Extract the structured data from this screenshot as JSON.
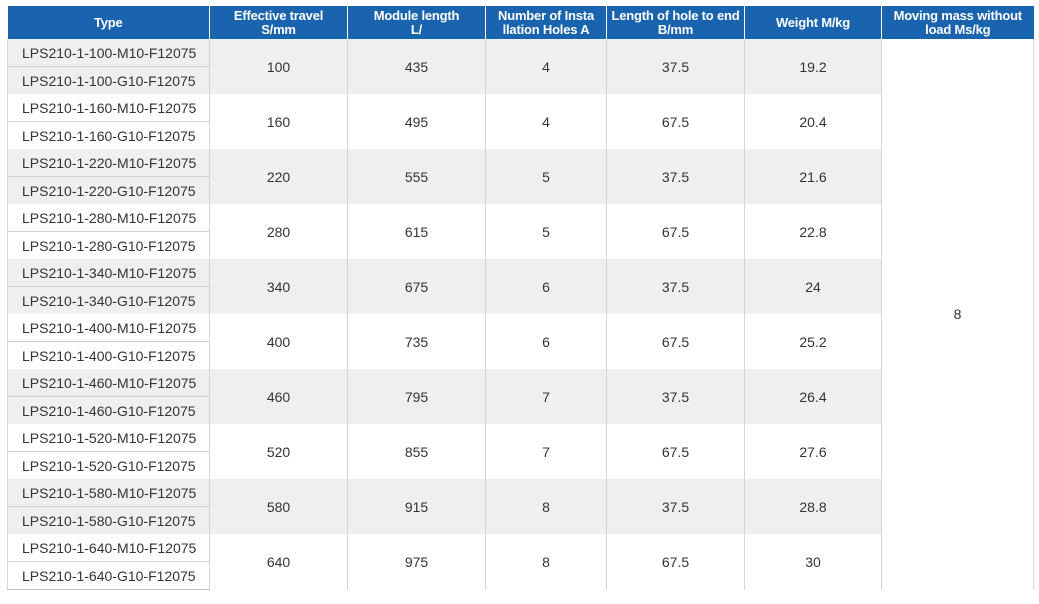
{
  "headers": {
    "type": "Type",
    "travel_1": "Effective travel",
    "travel_2": "S/mm",
    "length_1": "Module length",
    "length_2": "L/",
    "holes_1": "Number of Insta",
    "holes_2": "llation Holes A",
    "hole_end_1": "Length of hole to end",
    "hole_end_2": "B/mm",
    "weight": "Weight M/kg",
    "mass_1": "Moving mass without",
    "mass_2": "load Ms/kg"
  },
  "moving_mass": "8",
  "rows": [
    {
      "type_m": "LPS210-1-100-M10-F12075",
      "type_g": "LPS210-1-100-G10-F12075",
      "travel": "100",
      "length": "435",
      "holes": "4",
      "hole_end": "37.5",
      "weight": "19.2"
    },
    {
      "type_m": "LPS210-1-160-M10-F12075",
      "type_g": "LPS210-1-160-G10-F12075",
      "travel": "160",
      "length": "495",
      "holes": "4",
      "hole_end": "67.5",
      "weight": "20.4"
    },
    {
      "type_m": "LPS210-1-220-M10-F12075",
      "type_g": "LPS210-1-220-G10-F12075",
      "travel": "220",
      "length": "555",
      "holes": "5",
      "hole_end": "37.5",
      "weight": "21.6"
    },
    {
      "type_m": "LPS210-1-280-M10-F12075",
      "type_g": "LPS210-1-280-G10-F12075",
      "travel": "280",
      "length": "615",
      "holes": "5",
      "hole_end": "67.5",
      "weight": "22.8"
    },
    {
      "type_m": "LPS210-1-340-M10-F12075",
      "type_g": "LPS210-1-340-G10-F12075",
      "travel": "340",
      "length": "675",
      "holes": "6",
      "hole_end": "37.5",
      "weight": "24"
    },
    {
      "type_m": "LPS210-1-400-M10-F12075",
      "type_g": "LPS210-1-400-G10-F12075",
      "travel": "400",
      "length": "735",
      "holes": "6",
      "hole_end": "67.5",
      "weight": "25.2"
    },
    {
      "type_m": "LPS210-1-460-M10-F12075",
      "type_g": "LPS210-1-460-G10-F12075",
      "travel": "460",
      "length": "795",
      "holes": "7",
      "hole_end": "37.5",
      "weight": "26.4"
    },
    {
      "type_m": "LPS210-1-520-M10-F12075",
      "type_g": "LPS210-1-520-G10-F12075",
      "travel": "520",
      "length": "855",
      "holes": "7",
      "hole_end": "67.5",
      "weight": "27.6"
    },
    {
      "type_m": "LPS210-1-580-M10-F12075",
      "type_g": "LPS210-1-580-G10-F12075",
      "travel": "580",
      "length": "915",
      "holes": "8",
      "hole_end": "37.5",
      "weight": "28.8"
    },
    {
      "type_m": "LPS210-1-640-M10-F12075",
      "type_g": "LPS210-1-640-G10-F12075",
      "travel": "640",
      "length": "975",
      "holes": "8",
      "hole_end": "67.5",
      "weight": "30"
    }
  ],
  "colors": {
    "header_bg": "#1a63ae",
    "header_text": "#ffffff",
    "band_gray": "#efefef",
    "band_white": "#ffffff"
  }
}
